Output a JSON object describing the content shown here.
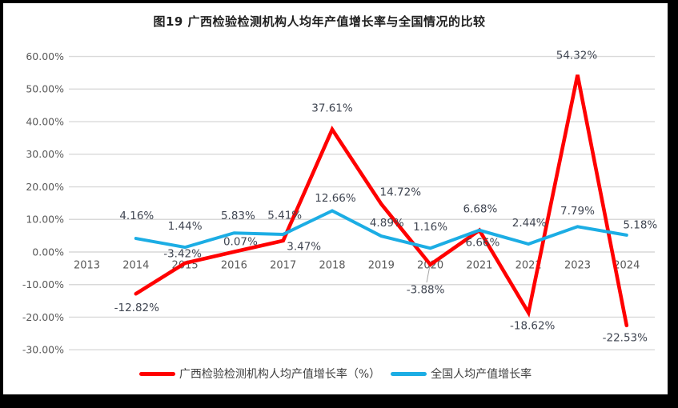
{
  "chart_data": {
    "type": "line",
    "title": "图19 广西检验检测机构人均年产值增长率与全国情况的比较",
    "x_categories": [
      "2013",
      "2014",
      "2015",
      "2016",
      "2017",
      "2018",
      "2019",
      "2020",
      "2021",
      "2022",
      "2023",
      "2024"
    ],
    "y_axis": {
      "min": -30,
      "max": 60,
      "ticks": [
        {
          "label": "60.00%",
          "value": 60
        },
        {
          "label": "50.00%",
          "value": 50
        },
        {
          "label": "40.00%",
          "value": 40
        },
        {
          "label": "30.00%",
          "value": 30
        },
        {
          "label": "20.00%",
          "value": 20
        },
        {
          "label": "10.00%",
          "value": 10
        },
        {
          "label": "0.00%",
          "value": 0
        },
        {
          "label": "-10.00%",
          "value": -10
        },
        {
          "label": "-20.00%",
          "value": -20
        },
        {
          "label": "-30.00%",
          "value": -30
        }
      ]
    },
    "grid": true,
    "legend_position": "bottom",
    "series": [
      {
        "name": "广西检验检测机构人均产值增长率（%）",
        "color": "#FF0000",
        "start_index": 1,
        "values": [
          -12.82,
          -3.42,
          0.07,
          3.47,
          37.61,
          14.72,
          -3.88,
          6.66,
          -18.62,
          54.32,
          -22.53
        ],
        "labels": [
          "-12.82%",
          "-3.42%",
          "0.07%",
          "3.47%",
          "37.61%",
          "14.72%",
          "-3.88%",
          "6.66%",
          "-18.62%",
          "54.32%",
          "-22.53%"
        ]
      },
      {
        "name": "全国人均产值增长率",
        "color": "#1CADE4",
        "start_index": 1,
        "values": [
          4.16,
          1.44,
          5.83,
          5.41,
          12.66,
          4.89,
          1.16,
          6.68,
          2.44,
          7.79,
          5.18
        ],
        "labels": [
          "4.16%",
          "1.44%",
          "5.83%",
          "5.41%",
          "12.66%",
          "4.89%",
          "1.16%",
          "6.68%",
          "2.44%",
          "7.79%",
          "5.18%"
        ]
      }
    ],
    "colors": {
      "grid": "#D9D9D9",
      "axis_text": "#595959",
      "label_text": "#404652",
      "title_text": "#1F1F1F",
      "legend_text": "#404040",
      "leader": "#A6A6A6",
      "frame_border": "#000000",
      "background": "#FFFFFF"
    }
  }
}
